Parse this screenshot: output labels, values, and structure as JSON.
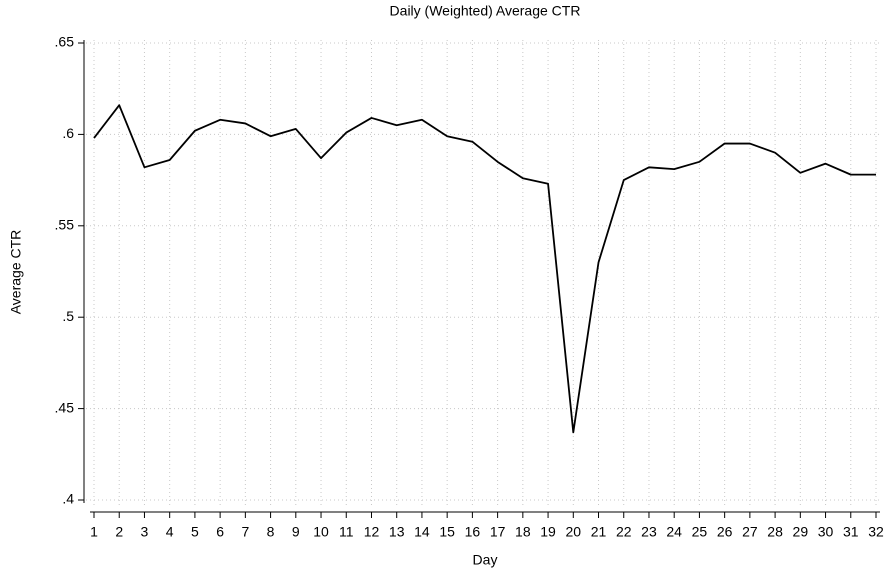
{
  "chart_data": {
    "type": "line",
    "title": "Daily (Weighted) Average CTR",
    "x_label": "Day",
    "y_label": "Average CTR",
    "x": [
      1,
      2,
      3,
      4,
      5,
      6,
      7,
      8,
      9,
      10,
      11,
      12,
      13,
      14,
      15,
      16,
      17,
      18,
      19,
      20,
      21,
      22,
      23,
      24,
      25,
      26,
      27,
      28,
      29,
      30,
      31,
      32
    ],
    "series": [
      {
        "name": "Average CTR",
        "color": "#000000",
        "values": [
          0.598,
          0.616,
          0.582,
          0.586,
          0.602,
          0.608,
          0.606,
          0.599,
          0.603,
          0.587,
          0.601,
          0.609,
          0.605,
          0.608,
          0.599,
          0.596,
          0.585,
          0.576,
          0.573,
          0.437,
          0.53,
          0.575,
          0.582,
          0.581,
          0.585,
          0.595,
          0.595,
          0.59,
          0.579,
          0.584,
          0.578,
          0.578
        ]
      }
    ],
    "xlim": [
      1,
      32
    ],
    "xticks": [
      1,
      2,
      3,
      4,
      5,
      6,
      7,
      8,
      9,
      10,
      11,
      12,
      13,
      14,
      15,
      16,
      17,
      18,
      19,
      20,
      21,
      22,
      23,
      24,
      25,
      26,
      27,
      28,
      29,
      30,
      31,
      32
    ],
    "ylim": [
      0.4,
      0.65
    ],
    "yticks": [
      {
        "value": 0.4,
        "label": ".4"
      },
      {
        "value": 0.45,
        "label": ".45"
      },
      {
        "value": 0.5,
        "label": ".5"
      },
      {
        "value": 0.55,
        "label": ".55"
      },
      {
        "value": 0.6,
        "label": ".6"
      },
      {
        "value": 0.65,
        "label": ".65"
      }
    ],
    "grid": true
  }
}
